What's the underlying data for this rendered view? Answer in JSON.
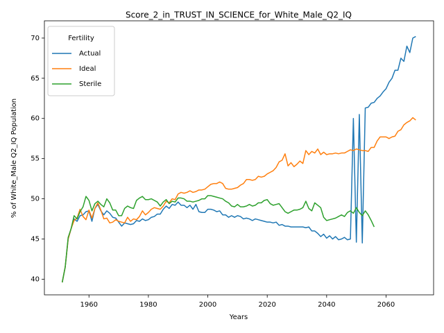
{
  "chart_data": {
    "type": "line",
    "title": "Score_2_in_TRUST_IN_SCIENCE_for_White_Male_Q2_IQ",
    "xlabel": "Years",
    "ylabel": "% of White_Male Q2_IQ Population",
    "legend_title": "Fertility",
    "legend": "upper left",
    "grid": false,
    "x": [
      1951,
      1952,
      1953,
      1954,
      1955,
      1956,
      1957,
      1958,
      1959,
      1960,
      1961,
      1962,
      1963,
      1964,
      1965,
      1966,
      1967,
      1968,
      1969,
      1970,
      1971,
      1972,
      1973,
      1974,
      1975,
      1976,
      1977,
      1978,
      1979,
      1980,
      1981,
      1982,
      1983,
      1984,
      1985,
      1986,
      1987,
      1988,
      1989,
      1990,
      1991,
      1992,
      1993,
      1994,
      1995,
      1996,
      1997,
      1998,
      1999,
      2000,
      2001,
      2002,
      2003,
      2004,
      2005,
      2006,
      2007,
      2008,
      2009,
      2010,
      2011,
      2012,
      2013,
      2014,
      2015,
      2016,
      2017,
      2018,
      2019,
      2020,
      2021,
      2022,
      2023,
      2024,
      2025,
      2026,
      2027,
      2028,
      2029,
      2030,
      2031,
      2032,
      2033,
      2034,
      2035,
      2036,
      2037,
      2038,
      2039,
      2040,
      2041,
      2042,
      2043,
      2044,
      2045,
      2046,
      2047,
      2048,
      2049,
      2050,
      2051,
      2052,
      2053,
      2054,
      2055,
      2056,
      2057,
      2058,
      2059,
      2060,
      2061,
      2062,
      2063,
      2064,
      2065,
      2066,
      2067,
      2068,
      2069,
      2070
    ],
    "series": [
      {
        "name": "Actual",
        "color": "#1f77b4",
        "values": [
          39.6,
          41.5,
          45.0,
          46.3,
          47.5,
          47.2,
          47.9,
          48.0,
          48.4,
          48.5,
          47.2,
          48.8,
          49.3,
          48.5,
          48.0,
          48.5,
          48.2,
          47.7,
          47.6,
          47.1,
          46.6,
          47.0,
          46.9,
          46.8,
          46.9,
          47.3,
          47.2,
          47.5,
          47.3,
          47.4,
          47.7,
          47.8,
          48.1,
          48.1,
          48.7,
          49.1,
          48.8,
          49.3,
          49.2,
          49.6,
          49.2,
          49.2,
          48.9,
          49.2,
          48.7,
          49.3,
          48.4,
          48.3,
          48.3,
          48.7,
          48.7,
          48.6,
          48.4,
          48.5,
          48.0,
          48.0,
          47.7,
          47.9,
          47.7,
          47.9,
          47.8,
          47.5,
          47.6,
          47.5,
          47.3,
          47.5,
          47.4,
          47.3,
          47.2,
          47.1,
          47.1,
          47.0,
          47.1,
          46.7,
          46.8,
          46.6,
          46.6,
          46.5,
          46.5,
          46.5,
          46.5,
          46.5,
          46.4,
          46.5,
          46.0,
          46.0,
          45.7,
          45.3,
          45.6,
          45.1,
          45.4,
          45.0,
          45.3,
          44.9,
          45.0,
          45.2,
          44.9,
          45.0,
          60.0,
          44.6,
          60.5,
          44.5,
          61.3,
          61.4,
          61.9,
          62.0,
          62.5,
          62.8,
          63.3,
          63.7,
          64.5,
          65.0,
          66.0,
          66.0,
          67.5,
          67.1,
          69.0,
          68.2,
          70.0,
          70.2
        ]
      },
      {
        "name": "Ideal",
        "color": "#ff7f0e",
        "values": [
          39.6,
          41.5,
          45.0,
          46.3,
          47.3,
          47.6,
          48.7,
          47.8,
          47.4,
          48.6,
          47.6,
          48.8,
          49.5,
          48.6,
          47.5,
          47.6,
          47.0,
          47.1,
          47.4,
          47.2,
          47.1,
          47.0,
          47.7,
          47.2,
          47.5,
          47.4,
          47.8,
          48.5,
          48.0,
          48.3,
          48.7,
          48.9,
          48.8,
          48.7,
          49.1,
          49.7,
          49.5,
          50.0,
          49.9,
          50.6,
          50.8,
          50.7,
          50.8,
          51.0,
          50.8,
          50.9,
          51.1,
          51.1,
          51.2,
          51.5,
          51.8,
          51.9,
          51.9,
          52.1,
          51.9,
          51.3,
          51.2,
          51.2,
          51.3,
          51.4,
          51.7,
          51.9,
          52.4,
          52.4,
          52.3,
          52.4,
          52.8,
          52.7,
          52.8,
          53.1,
          53.3,
          53.5,
          53.9,
          54.6,
          54.8,
          55.6,
          54.1,
          54.5,
          54.0,
          54.3,
          54.7,
          54.4,
          56.0,
          55.5,
          55.9,
          55.7,
          56.2,
          55.5,
          55.8,
          55.5,
          55.6,
          55.6,
          55.7,
          55.6,
          55.7,
          55.7,
          55.9,
          56.1,
          56.0,
          56.2,
          56.1,
          56.0,
          56.0,
          55.9,
          56.4,
          56.4,
          57.2,
          57.7,
          57.7,
          57.7,
          57.5,
          57.7,
          57.8,
          58.4,
          58.6,
          59.2,
          59.5,
          59.7,
          60.1,
          59.8
        ]
      },
      {
        "name": "Sterile",
        "color": "#2ca02c",
        "values": [
          39.6,
          41.5,
          45.2,
          46.3,
          47.9,
          47.5,
          48.4,
          49.0,
          50.3,
          49.8,
          48.5,
          49.4,
          49.7,
          49.3,
          49.0,
          50.0,
          49.5,
          48.6,
          48.6,
          47.9,
          47.9,
          48.8,
          49.1,
          48.9,
          48.8,
          49.8,
          50.1,
          50.3,
          49.9,
          49.9,
          50.0,
          49.8,
          49.6,
          49.1,
          49.6,
          49.9,
          49.4,
          49.7,
          49.6,
          50.1,
          50.1,
          50.0,
          49.7,
          49.7,
          49.6,
          49.7,
          49.8,
          50.0,
          50.0,
          50.4,
          50.4,
          50.3,
          50.2,
          50.1,
          50.0,
          49.7,
          49.5,
          49.1,
          49.0,
          49.3,
          49.0,
          49.0,
          49.1,
          49.3,
          49.1,
          49.2,
          49.5,
          49.5,
          49.8,
          49.9,
          49.4,
          49.2,
          49.3,
          49.4,
          48.9,
          48.4,
          48.2,
          48.4,
          48.6,
          48.6,
          48.7,
          48.9,
          49.7,
          48.8,
          48.5,
          49.5,
          49.2,
          48.9,
          47.7,
          47.3,
          47.4,
          47.5,
          47.6,
          47.8,
          48.0,
          47.8,
          48.3,
          48.5,
          48.2,
          48.9,
          48.3,
          47.9,
          48.5,
          48.0,
          47.3,
          46.5,
          null,
          null,
          null,
          null,
          null,
          null,
          null,
          null,
          null,
          null,
          null,
          null,
          null,
          null
        ]
      }
    ],
    "xlim": [
      1945,
      2076
    ],
    "ylim": [
      38.05,
      72.15
    ],
    "xticks": [
      1960,
      1980,
      2000,
      2020,
      2040,
      2060
    ],
    "yticks": [
      40,
      45,
      50,
      55,
      60,
      65,
      70
    ]
  }
}
